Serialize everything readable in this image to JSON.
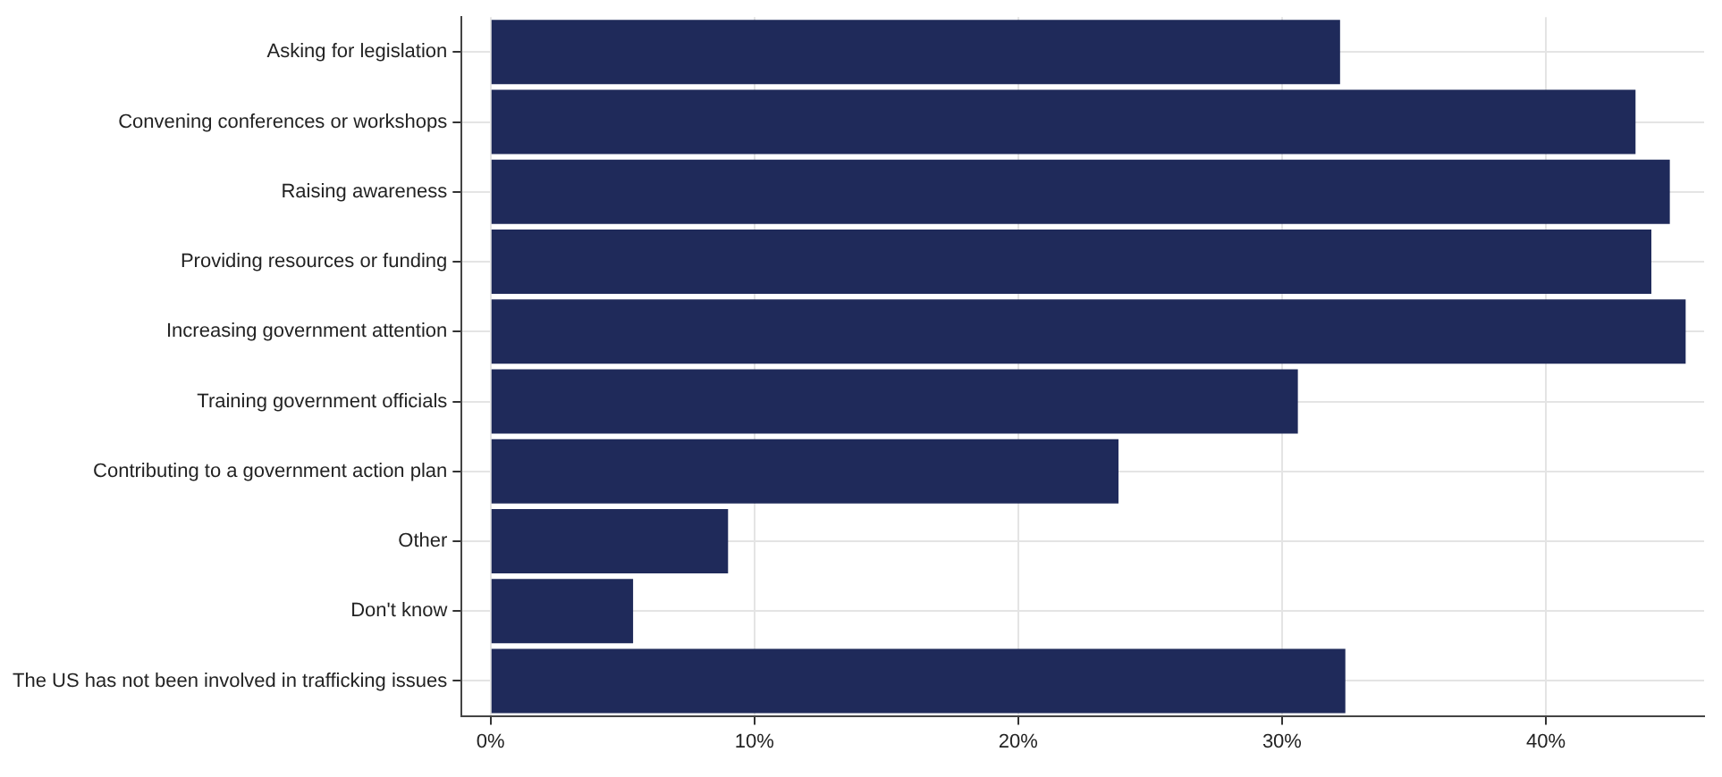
{
  "chart_data": {
    "type": "bar",
    "orientation": "horizontal",
    "categories": [
      "Asking for legislation",
      "Convening conferences or workshops",
      "Raising awareness",
      "Providing resources or funding",
      "Increasing government attention",
      "Training government officials",
      "Contributing to a government action plan",
      "Other",
      "Don't know",
      "The US has not been involved in trafficking issues"
    ],
    "values": [
      32.2,
      43.4,
      44.7,
      44.0,
      45.3,
      30.6,
      23.8,
      9.0,
      5.4,
      32.4
    ],
    "color": "#1f2a5a",
    "xlim": [
      -1.1,
      46
    ],
    "xticks": [
      {
        "value": 0,
        "label": "0%"
      },
      {
        "value": 10,
        "label": "10%"
      },
      {
        "value": 20,
        "label": "20%"
      },
      {
        "value": 30,
        "label": "30%"
      },
      {
        "value": 40,
        "label": "40%"
      }
    ],
    "grid": true,
    "legend": false
  }
}
